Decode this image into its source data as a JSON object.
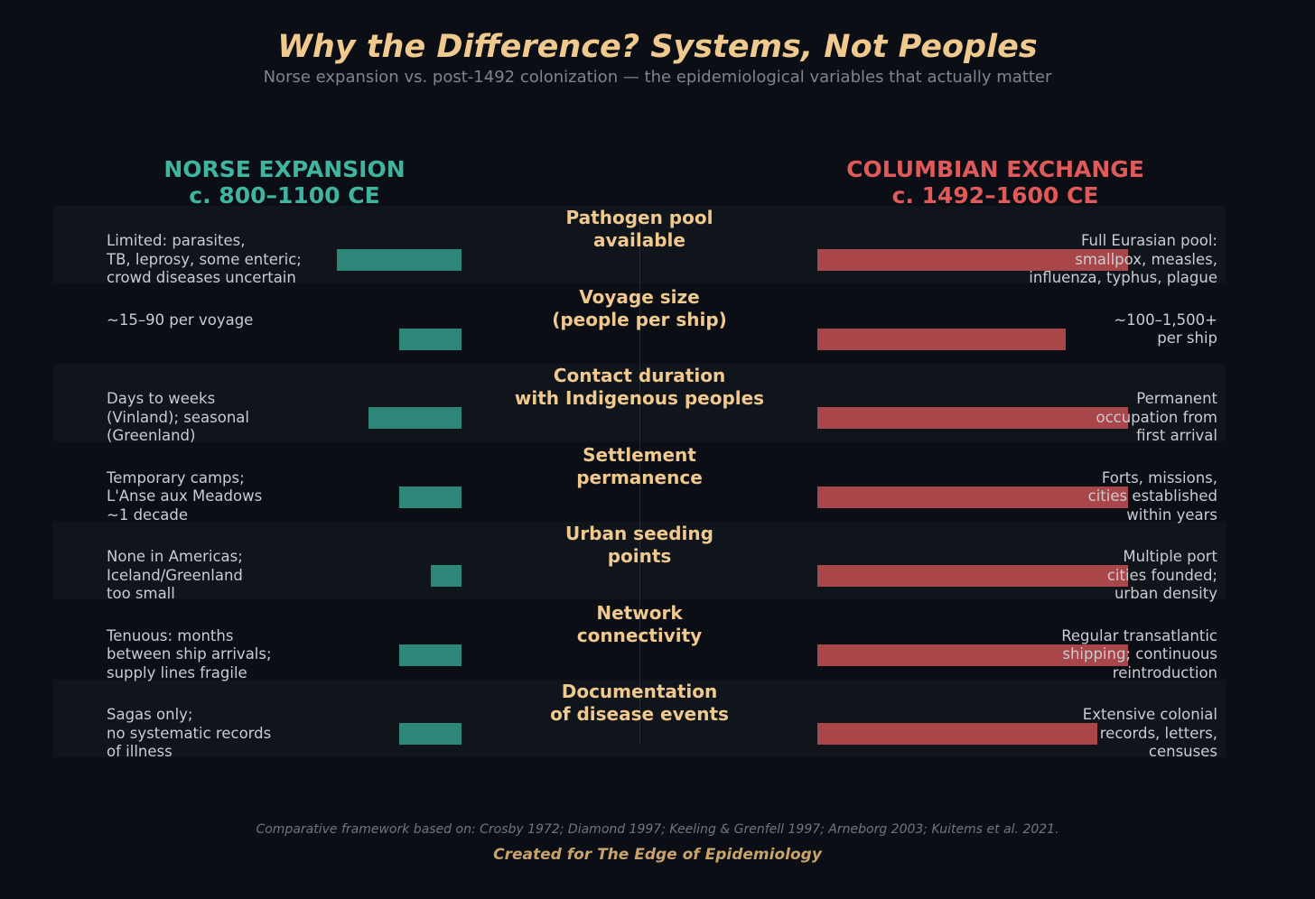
{
  "chart_data": {
    "type": "bar",
    "title": "Why the Difference? Systems, Not Peoples",
    "subtitle": "Norse expansion vs. post-1492 colonization — the epidemiological variables that actually matter",
    "categories": [
      "Pathogen pool\navailable",
      "Voyage size\n(people per ship)",
      "Contact duration\nwith Indigenous peoples",
      "Settlement\npermanence",
      "Urban seeding\npoints",
      "Network\nconnectivity",
      "Documentation\nof disease events"
    ],
    "xlim": [
      0,
      10
    ],
    "series": [
      {
        "name": "NORSE EXPANSION",
        "period": "c. 800–1100 CE",
        "color": "#2e8679",
        "header_color": "#3fb5a0",
        "values": [
          4,
          2,
          3,
          2,
          1,
          2,
          2
        ],
        "labels": [
          "Limited: parasites,\nTB, leprosy, some enteric;\ncrowd diseases uncertain",
          "~15–90 per voyage",
          "Days to weeks\n(Vinland); seasonal\n(Greenland)",
          "Temporary camps;\nL'Anse aux Meadows\n~1 decade",
          "None in Americas;\nIceland/Greenland\ntoo small",
          "Tenuous: months\nbetween ship arrivals;\nsupply lines fragile",
          "Sagas only;\nno systematic records\nof illness"
        ]
      },
      {
        "name": "COLUMBIAN EXCHANGE",
        "period": "c. 1492–1600 CE",
        "color": "#a8464a",
        "header_color": "#e05a5a",
        "values": [
          10,
          8,
          10,
          10,
          10,
          10,
          9
        ],
        "labels": [
          "Full Eurasian pool:\nsmallpox, measles,\ninfluenza, typhus, plague",
          "~100–1,500+\nper ship",
          "Permanent\noccupation from\nfirst arrival",
          "Forts, missions,\ncities established\nwithin years",
          "Multiple port\ncities founded;\nurban density",
          "Regular transatlantic\nshipping; continuous\nreintroduction",
          "Extensive colonial\nrecords, letters,\ncensuses"
        ]
      }
    ],
    "source_note": "Comparative framework based on: Crosby 1972; Diamond 1997; Keeling & Grenfell 1997; Arneborg 2003; Kuitems et al. 2021.",
    "credit": "Created for The Edge of Epidemiology"
  }
}
